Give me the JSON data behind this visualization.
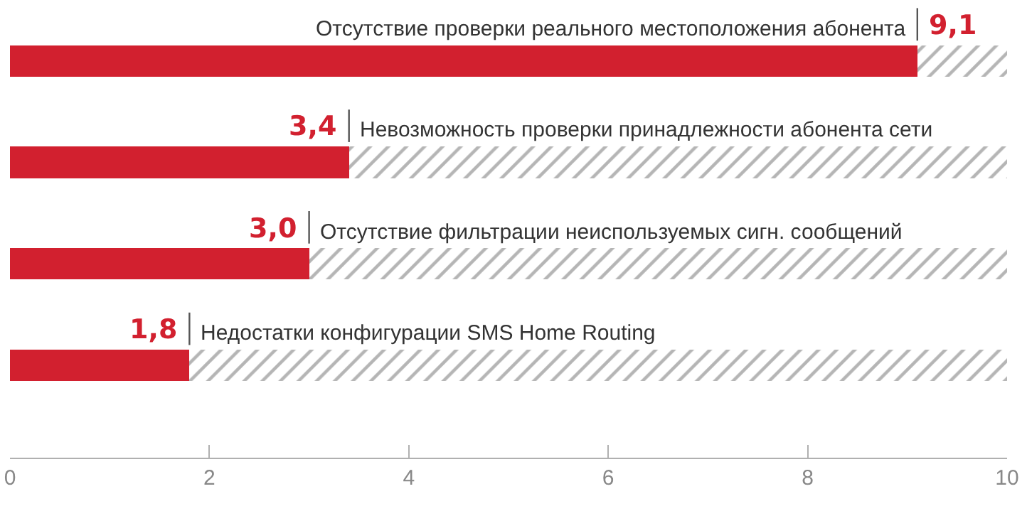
{
  "chart_data": {
    "type": "bar",
    "orientation": "horizontal",
    "stacked": true,
    "categories": [
      "Отсутствие проверки реального местоположения абонента",
      "Невозможность проверки принадлежности абонента сети",
      "Отсутствие фильтрации неиспользуемых сигн. сообщений",
      "Недостатки конфигурации SMS Home Routing"
    ],
    "series": [
      {
        "color": "#d2202f",
        "values": [
          9.1,
          3.4,
          3.0,
          1.8
        ],
        "value_labels": [
          "9,1",
          "3,4",
          "3,0",
          "1,8"
        ]
      },
      {
        "color": "#b5b5b5",
        "values": [
          0.9,
          6.6,
          7.0,
          8.2
        ]
      }
    ],
    "xlim": [
      0,
      10
    ],
    "xticks": [
      0,
      2,
      4,
      6,
      8,
      10
    ],
    "grid": false
  }
}
